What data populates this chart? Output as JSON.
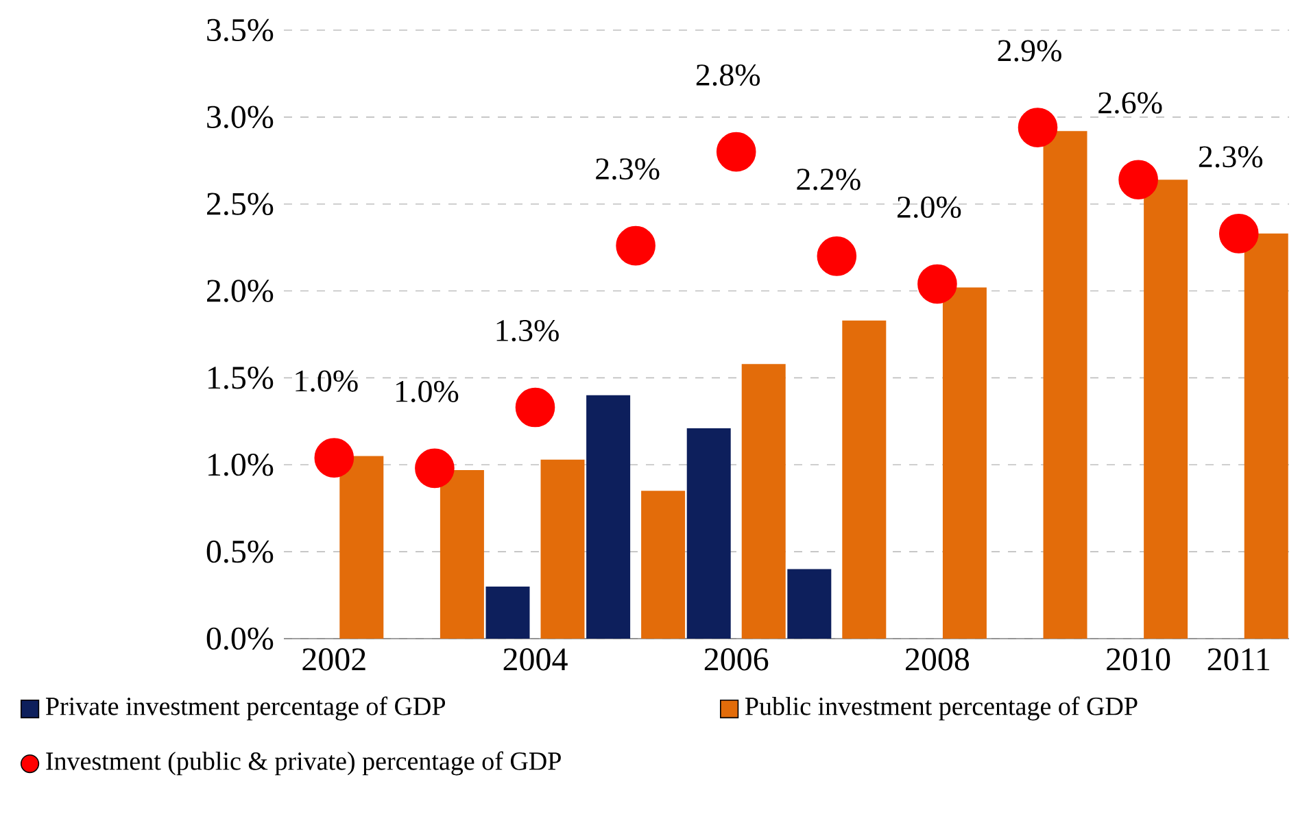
{
  "chart_data": {
    "type": "bar",
    "categories": [
      "2002",
      null,
      "2004",
      null,
      "2006",
      null,
      "2008",
      null,
      "2010",
      "2011"
    ],
    "series": [
      {
        "name": "Private investment percentage of GDP",
        "color": "#0d1f5c",
        "values": [
          null,
          null,
          0.3,
          1.4,
          1.21,
          0.4,
          null,
          null,
          null,
          null
        ]
      },
      {
        "name": "Public investment percentage of GDP",
        "color": "#e36c0a",
        "values": [
          1.05,
          0.97,
          1.03,
          0.85,
          1.58,
          1.83,
          2.02,
          2.92,
          2.64,
          2.33
        ]
      },
      {
        "name": "Investment (public & private) percentage of GDP",
        "type": "scatter",
        "color": "#ff0000",
        "values": [
          1.04,
          0.98,
          1.33,
          2.26,
          2.8,
          2.2,
          2.04,
          2.94,
          2.64,
          2.33
        ],
        "value_labels": [
          "1.0%",
          "1.0%",
          "1.3%",
          "2.3%",
          "2.8%",
          "2.2%",
          "2.0%",
          "2.9%",
          "2.6%",
          "2.3%"
        ]
      }
    ],
    "ylim": [
      0,
      3.5
    ],
    "yticks": [
      {
        "value": 0,
        "label": "0.0%"
      },
      {
        "value": 0.5,
        "label": "0.5%"
      },
      {
        "value": 1,
        "label": "1.0%"
      },
      {
        "value": 1.5,
        "label": "1.5%"
      },
      {
        "value": 2,
        "label": "2.0%"
      },
      {
        "value": 2.5,
        "label": "2.5%"
      },
      {
        "value": 3,
        "label": "3.0%"
      },
      {
        "value": 3.5,
        "label": "3.5%"
      }
    ],
    "grid": "y",
    "legend": "bottom",
    "marker": "circle"
  }
}
